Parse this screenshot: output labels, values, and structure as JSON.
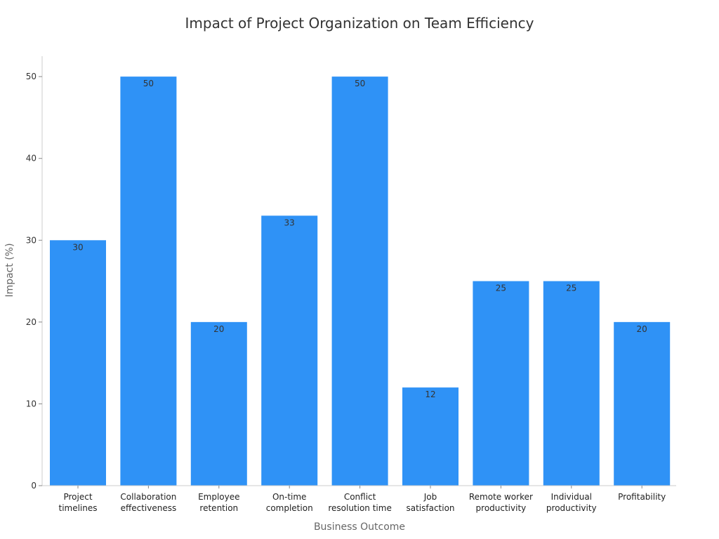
{
  "chart_data": {
    "type": "bar",
    "title": "Impact of Project Organization on Team Efficiency",
    "xlabel": "Business Outcome",
    "ylabel": "Impact (%)",
    "ylim": [
      0,
      52.5
    ],
    "yticks": [
      0,
      10,
      20,
      30,
      40,
      50
    ],
    "ytick_labels": [
      "0",
      "10",
      "20",
      "30",
      "40",
      "50"
    ],
    "grid": false,
    "bar_color": "#2f92f6",
    "categories": [
      [
        "Project",
        "timelines"
      ],
      [
        "Collaboration",
        "effectiveness"
      ],
      [
        "Employee",
        "retention"
      ],
      [
        "On-time",
        "completion"
      ],
      [
        "Conflict",
        "resolution time"
      ],
      [
        "Job",
        "satisfaction"
      ],
      [
        "Remote worker",
        "productivity"
      ],
      [
        "Individual",
        "productivity"
      ],
      [
        "Profitability"
      ]
    ],
    "values": [
      30,
      50,
      20,
      33,
      50,
      12,
      25,
      25,
      20
    ],
    "value_labels": [
      "30",
      "50",
      "20",
      "33",
      "50",
      "12",
      "25",
      "25",
      "20"
    ]
  }
}
